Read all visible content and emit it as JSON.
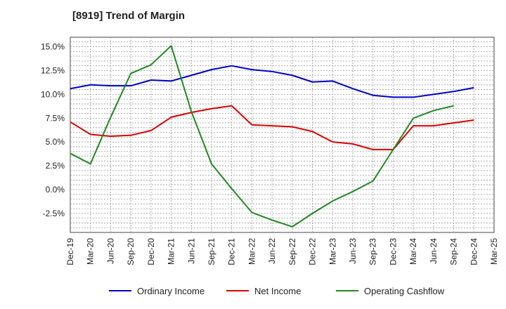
{
  "chart_data": {
    "type": "line",
    "title": "[8919]  Trend of Margin",
    "xlabel": "",
    "ylabel": "",
    "categories": [
      "Dec-19",
      "Mar-20",
      "Jun-20",
      "Sep-20",
      "Dec-20",
      "Mar-21",
      "Jun-21",
      "Sep-21",
      "Dec-21",
      "Mar-22",
      "Jun-22",
      "Sep-22",
      "Dec-22",
      "Mar-23",
      "Jun-23",
      "Sep-23",
      "Dec-23",
      "Mar-24",
      "Jun-24",
      "Sep-24",
      "Dec-24",
      "Mar-25"
    ],
    "ylim": [
      -4.5,
      16.0
    ],
    "yticks": [
      -2.5,
      0.0,
      2.5,
      5.0,
      7.5,
      10.0,
      12.5,
      15.0
    ],
    "ytick_labels": [
      "-2.5%",
      "0.0%",
      "2.5%",
      "5.0%",
      "7.5%",
      "10.0%",
      "12.5%",
      "15.0%"
    ],
    "grid": true,
    "legend_position": "bottom",
    "series": [
      {
        "name": "Ordinary Income",
        "color": "#0000cc",
        "values": [
          10.6,
          11.0,
          10.9,
          10.9,
          11.5,
          11.4,
          12.0,
          12.6,
          13.0,
          12.6,
          12.4,
          12.0,
          11.3,
          11.4,
          10.6,
          9.9,
          9.7,
          9.7,
          10.0,
          10.3,
          10.7,
          null
        ]
      },
      {
        "name": "Net Income",
        "color": "#dd0000",
        "values": [
          7.1,
          5.8,
          5.6,
          5.7,
          6.2,
          7.6,
          8.1,
          8.5,
          8.8,
          6.8,
          6.7,
          6.6,
          6.1,
          5.0,
          4.8,
          4.2,
          4.2,
          6.7,
          6.7,
          7.0,
          7.3,
          null
        ]
      },
      {
        "name": "Operating Cashflow",
        "color": "#228822",
        "values": [
          3.8,
          2.7,
          7.6,
          12.2,
          13.1,
          15.1,
          8.2,
          2.7,
          0.1,
          -2.4,
          -3.2,
          -3.9,
          -2.5,
          -1.2,
          -0.2,
          0.9,
          4.2,
          7.5,
          8.3,
          8.8,
          null,
          null
        ]
      }
    ]
  }
}
